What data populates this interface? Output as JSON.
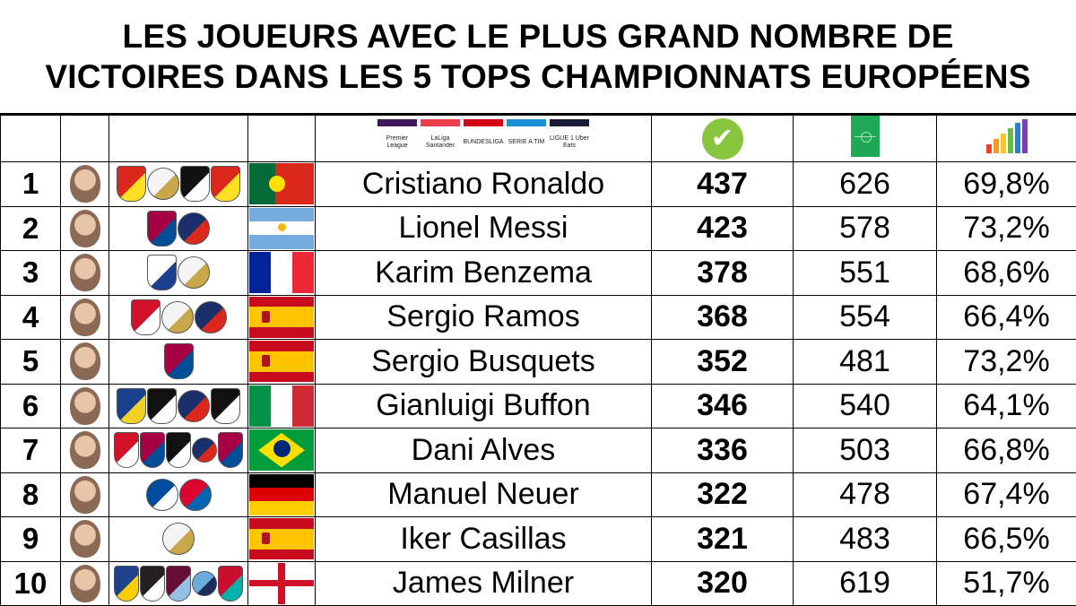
{
  "title": {
    "line1": "LES JOUEURS AVEC LE PLUS GRAND NOMBRE DE",
    "line2": "VICTOIRES DANS LES 5 TOPS CHAMPIONNATS EUROPÉENS"
  },
  "header": {
    "leagues": [
      {
        "icon": "premier-league-logo",
        "label": "Premier League"
      },
      {
        "icon": "laliga-logo",
        "label": "LaLiga Santander"
      },
      {
        "icon": "bundesliga-logo",
        "label": "BUNDESLIGA"
      },
      {
        "icon": "serie-a-logo",
        "label": "SERIE A TIM"
      },
      {
        "icon": "ligue1-logo",
        "label": "LIGUE 1 Uber Eats"
      }
    ],
    "wins_icon": "checkmark-icon",
    "played_icon": "football-pitch-icon",
    "pct_icon": "growth-chart-icon",
    "accent": "#8ac53f"
  },
  "rows": [
    {
      "rank": "1",
      "name": "Cristiano Ronaldo",
      "wins": "437",
      "played": "626",
      "pct": "69,8%",
      "flag": "portugal",
      "clubs": [
        "manchester-united",
        "real-madrid",
        "juventus",
        "manchester-united"
      ]
    },
    {
      "rank": "2",
      "name": "Lionel Messi",
      "wins": "423",
      "played": "578",
      "pct": "73,2%",
      "flag": "argentina",
      "clubs": [
        "fc-barcelona",
        "psg"
      ]
    },
    {
      "rank": "3",
      "name": "Karim Benzema",
      "wins": "378",
      "played": "551",
      "pct": "68,6%",
      "flag": "france",
      "clubs": [
        "olympique-lyonnais",
        "real-madrid"
      ]
    },
    {
      "rank": "4",
      "name": "Sergio Ramos",
      "wins": "368",
      "played": "554",
      "pct": "66,4%",
      "flag": "spain",
      "clubs": [
        "sevilla",
        "real-madrid",
        "psg"
      ]
    },
    {
      "rank": "5",
      "name": "Sergio Busquets",
      "wins": "352",
      "played": "481",
      "pct": "73,2%",
      "flag": "spain",
      "clubs": [
        "fc-barcelona"
      ]
    },
    {
      "rank": "6",
      "name": "Gianluigi Buffon",
      "wins": "346",
      "played": "540",
      "pct": "64,1%",
      "flag": "italy",
      "clubs": [
        "parma",
        "juventus",
        "psg",
        "juventus"
      ]
    },
    {
      "rank": "7",
      "name": "Dani Alves",
      "wins": "336",
      "played": "503",
      "pct": "66,8%",
      "flag": "brazil",
      "clubs": [
        "sevilla",
        "fc-barcelona",
        "juventus",
        "psg",
        "fc-barcelona"
      ]
    },
    {
      "rank": "8",
      "name": "Manuel Neuer",
      "wins": "322",
      "played": "478",
      "pct": "67,4%",
      "flag": "germany",
      "clubs": [
        "schalke-04",
        "bayern-munich"
      ]
    },
    {
      "rank": "9",
      "name": "Iker Casillas",
      "wins": "321",
      "played": "483",
      "pct": "66,5%",
      "flag": "spain",
      "clubs": [
        "real-madrid"
      ]
    },
    {
      "rank": "10",
      "name": "James Milner",
      "wins": "320",
      "played": "619",
      "pct": "51,7%",
      "flag": "england",
      "clubs": [
        "leeds-united",
        "newcastle",
        "aston-villa",
        "manchester-city",
        "liverpool"
      ]
    }
  ]
}
